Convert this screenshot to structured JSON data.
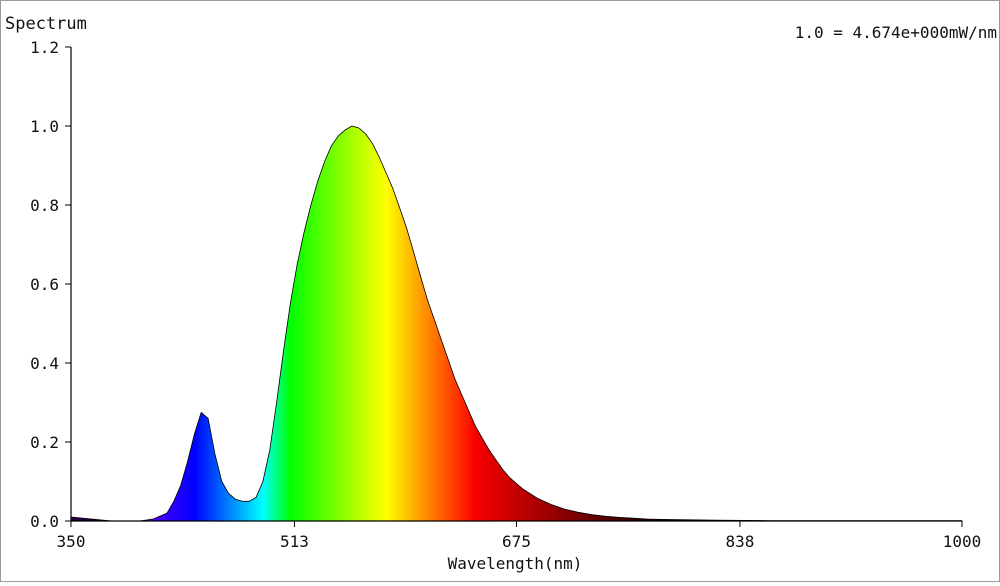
{
  "chart_data": {
    "type": "area",
    "title": "Spectrum",
    "scale_note": "1.0 = 4.674e+000mW/nm",
    "xlabel": "Wavelength(nm)",
    "ylabel": "",
    "xlim": [
      350,
      1000
    ],
    "ylim": [
      0,
      1.2
    ],
    "x_ticks": [
      350,
      513,
      675,
      838,
      1000
    ],
    "x_tick_labels": [
      "350",
      "513",
      "675",
      "838",
      "1000"
    ],
    "y_ticks": [
      0,
      0.2,
      0.4,
      0.6,
      0.8,
      1.0,
      1.2
    ],
    "y_tick_labels": [
      "0.0",
      "0.2",
      "0.4",
      "0.6",
      "0.8",
      "1.0",
      "1.2"
    ],
    "grid": false,
    "fill": "wavelength-colored spectrum",
    "series": [
      {
        "x": [
          350,
          380,
          400,
          410,
          420,
          425,
          430,
          435,
          440,
          445,
          450,
          455,
          460,
          465,
          470,
          475,
          480,
          485,
          490,
          495,
          500,
          505,
          510,
          515,
          520,
          525,
          530,
          535,
          540,
          545,
          550,
          555,
          560,
          565,
          570,
          575,
          580,
          585,
          590,
          595,
          600,
          605,
          610,
          615,
          620,
          625,
          630,
          635,
          640,
          645,
          650,
          655,
          660,
          665,
          670,
          675,
          680,
          690,
          700,
          710,
          720,
          730,
          740,
          750,
          760,
          770,
          780,
          800,
          820,
          840,
          860,
          880,
          900,
          950,
          1000
        ],
        "y": [
          0.01,
          0.0,
          0.0,
          0.005,
          0.02,
          0.05,
          0.09,
          0.15,
          0.22,
          0.275,
          0.26,
          0.17,
          0.1,
          0.07,
          0.055,
          0.05,
          0.05,
          0.06,
          0.1,
          0.18,
          0.3,
          0.43,
          0.55,
          0.65,
          0.73,
          0.8,
          0.86,
          0.91,
          0.95,
          0.975,
          0.99,
          1.0,
          0.995,
          0.98,
          0.955,
          0.92,
          0.88,
          0.84,
          0.79,
          0.74,
          0.68,
          0.62,
          0.56,
          0.51,
          0.46,
          0.41,
          0.36,
          0.32,
          0.28,
          0.24,
          0.21,
          0.18,
          0.155,
          0.13,
          0.11,
          0.095,
          0.08,
          0.058,
          0.042,
          0.03,
          0.022,
          0.016,
          0.012,
          0.009,
          0.007,
          0.005,
          0.004,
          0.003,
          0.002,
          0.0015,
          0.001,
          0.001,
          0.001,
          0.001,
          0.001
        ]
      }
    ]
  }
}
